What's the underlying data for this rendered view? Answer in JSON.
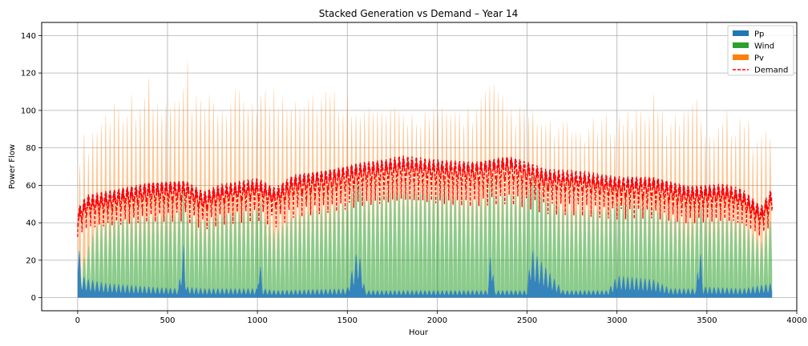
{
  "chart_data": {
    "type": "area",
    "title": "Stacked Generation vs Demand – Year 14",
    "xlabel": "Hour",
    "ylabel": "Power Flow",
    "xlim": [
      -200,
      4000
    ],
    "ylim": [
      -7,
      147
    ],
    "x_ticks": [
      0,
      500,
      1000,
      1500,
      2000,
      2500,
      3000,
      3500,
      4000
    ],
    "y_ticks": [
      0,
      20,
      40,
      60,
      80,
      100,
      120,
      140
    ],
    "grid": true,
    "legend_position": "top-right",
    "hours": 3864,
    "period_hours": 24,
    "series": [
      {
        "name": "Pp",
        "color": "#1f77b4",
        "profile": {
          "hours": [
            0,
            20,
            60,
            150,
            400,
            560,
            590,
            605,
            700,
            1000,
            1010,
            1030,
            1100,
            1500,
            1560,
            1600,
            1700,
            2000,
            2280,
            2300,
            2320,
            2500,
            2520,
            2700,
            2950,
            3000,
            3200,
            3300,
            3440,
            3460,
            3480,
            3700,
            3864
          ],
          "values": [
            40,
            12,
            10,
            8,
            6,
            5,
            30,
            6,
            5,
            5,
            25,
            5,
            4,
            5,
            28,
            4,
            4,
            4,
            4,
            30,
            4,
            4,
            27,
            4,
            4,
            12,
            10,
            5,
            5,
            32,
            6,
            5,
            8
          ]
        }
      },
      {
        "name": "Wind",
        "color": "#2ca02c",
        "profile": {
          "hours": [
            0,
            100,
            200,
            400,
            600,
            700,
            800,
            1000,
            1100,
            1200,
            1400,
            1600,
            1700,
            1800,
            2000,
            2200,
            2400,
            2500,
            2600,
            2800,
            3000,
            3200,
            3400,
            3600,
            3700,
            3800,
            3864
          ],
          "values": [
            5,
            33,
            38,
            40,
            42,
            38,
            42,
            45,
            33,
            42,
            46,
            50,
            54,
            55,
            54,
            50,
            54,
            52,
            45,
            45,
            45,
            43,
            38,
            40,
            38,
            25,
            40
          ]
        }
      },
      {
        "name": "Pv",
        "color": "#ff7f0e",
        "profile": {
          "hours": [
            0,
            200,
            300,
            400,
            410,
            420,
            500,
            600,
            610,
            620,
            800,
            1000,
            1010,
            1020,
            1200,
            1300,
            1500,
            1600,
            1800,
            2000,
            2200,
            2300,
            2400,
            2500,
            2600,
            2800,
            2900,
            3000,
            3100,
            3200,
            3300,
            3450,
            3460,
            3600,
            3700,
            3800,
            3864
          ],
          "values": [
            85,
            110,
            112,
            120,
            135,
            110,
            108,
            115,
            140,
            108,
            110,
            115,
            140,
            115,
            118,
            116,
            112,
            105,
            102,
            103,
            105,
            118,
            104,
            103,
            96,
            94,
            98,
            100,
            104,
            110,
            96,
            125,
            95,
            102,
            100,
            90,
            100
          ]
        }
      },
      {
        "name": "Demand",
        "color": "#ff0000",
        "style": "dashed",
        "profile": {
          "hours": [
            0,
            50,
            200,
            400,
            600,
            700,
            800,
            1000,
            1100,
            1200,
            1400,
            1600,
            1700,
            1800,
            2000,
            2200,
            2400,
            2500,
            2600,
            2800,
            3000,
            3200,
            3400,
            3600,
            3700,
            3800,
            3864
          ],
          "values": [
            45,
            52,
            55,
            59,
            60,
            54,
            58,
            61,
            56,
            63,
            66,
            70,
            71,
            73,
            71,
            70,
            73,
            70,
            66,
            65,
            62,
            62,
            57,
            58,
            55,
            46,
            56
          ]
        }
      }
    ]
  }
}
